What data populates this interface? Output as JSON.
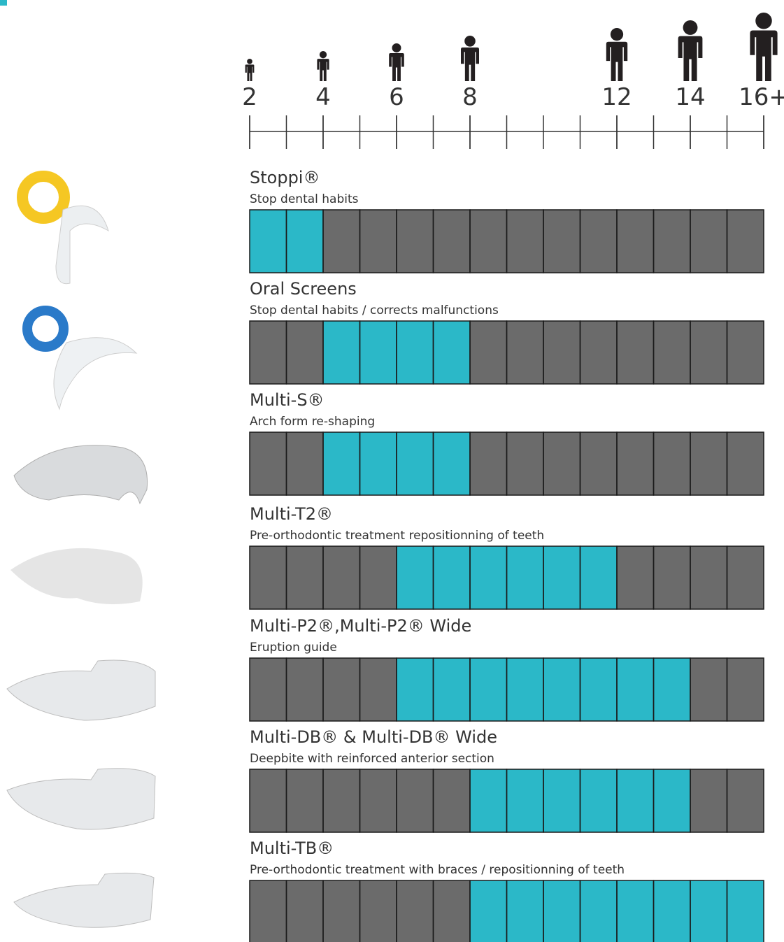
{
  "timeline": {
    "range": [
      2,
      16
    ],
    "ages": [
      {
        "value": 2,
        "label": "2"
      },
      {
        "value": 4,
        "label": "4"
      },
      {
        "value": 6,
        "label": "6"
      },
      {
        "value": 8,
        "label": "8"
      },
      {
        "value": 12,
        "label": "12"
      },
      {
        "value": 14,
        "label": "14"
      },
      {
        "value": 16,
        "label": "16+"
      }
    ]
  },
  "products": [
    {
      "name": "Stoppi®",
      "description": "Stop dental habits",
      "from": 2,
      "to": 4
    },
    {
      "name": "Oral Screens",
      "description": "Stop dental habits / corrects malfunctions",
      "from": 4,
      "to": 8
    },
    {
      "name": "Multi-S®",
      "description": "Arch form re-shaping",
      "from": 4,
      "to": 8
    },
    {
      "name": "Multi-T2®",
      "description": "Pre-orthodontic treatment repositionning of teeth",
      "from": 6,
      "to": 12
    },
    {
      "name": "Multi-P2®,Multi-P2® Wide",
      "description": "Eruption guide",
      "from": 6,
      "to": 14
    },
    {
      "name": "Multi-DB® & Multi-DB® Wide",
      "description": "Deepbite with reinforced anterior section",
      "from": 8,
      "to": 14
    },
    {
      "name": "Multi-TB®",
      "description": "Pre-orthodontic treatment with braces / repositionning of teeth",
      "from": 8,
      "to": 16
    }
  ]
}
